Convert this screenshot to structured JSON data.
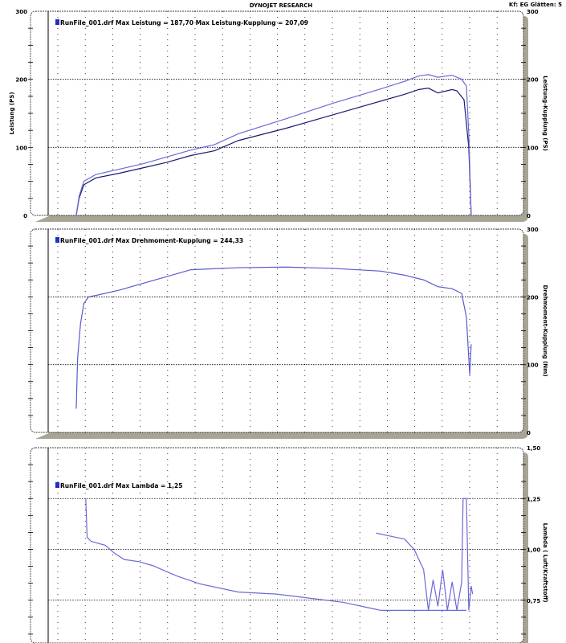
{
  "header": {
    "title": "DYNOJET RESEARCH",
    "settings": "Kf: EG  Glätten: 5"
  },
  "chart_data": [
    {
      "type": "line",
      "ylabel": "Leistung (PS)",
      "y2label": "Leistung-Kupplung (PS)",
      "ylim": [
        0,
        300
      ],
      "yticks": [
        "0",
        "100",
        "200",
        "300"
      ],
      "legend": "RunFile_001.drf Max Leistung = 187,70     Max Leistung-Kupplung = 207,09",
      "series": [
        {
          "name": "Leistung",
          "color": "#1a1a6e",
          "x": [
            5.9,
            6.5,
            7.5,
            10,
            15,
            20,
            25,
            30,
            35,
            40,
            50,
            60,
            70,
            75,
            78,
            80,
            82,
            85,
            86,
            87.5,
            88.5,
            89
          ],
          "y": [
            0,
            25,
            45,
            55,
            62,
            70,
            78,
            88,
            95,
            110,
            128,
            148,
            168,
            178,
            185,
            187,
            180,
            185,
            183,
            170,
            100,
            0
          ]
        },
        {
          "name": "Leistung-Kupplung",
          "color": "#6a6ad8",
          "x": [
            5.9,
            6.5,
            7.5,
            10,
            15,
            20,
            25,
            30,
            35,
            40,
            50,
            60,
            70,
            75,
            78,
            80,
            82,
            85,
            87,
            88,
            88.5,
            89
          ],
          "y": [
            0,
            28,
            50,
            60,
            68,
            76,
            86,
            96,
            104,
            120,
            142,
            165,
            186,
            197,
            205,
            207,
            203,
            206,
            200,
            190,
            120,
            0
          ]
        }
      ]
    },
    {
      "type": "line",
      "y2label": "Drehmoment-Kupplung (Nm)",
      "ylim": [
        0,
        300
      ],
      "yticks": [
        "0",
        "100",
        "200",
        "300"
      ],
      "legend": "RunFile_001.drf Max Drehmoment-Kupplung = 244,33",
      "series": [
        {
          "name": "Drehmoment-Kupplung",
          "color": "#5a5ad0",
          "x": [
            5.9,
            6.2,
            6.8,
            7.5,
            8.5,
            10,
            15,
            20,
            25,
            30,
            40,
            50,
            60,
            70,
            75,
            79,
            82,
            85,
            87,
            88,
            88.7,
            89
          ],
          "y": [
            35,
            110,
            160,
            190,
            200,
            202,
            210,
            220,
            230,
            240,
            243,
            244,
            242,
            238,
            232,
            225,
            215,
            212,
            205,
            170,
            85,
            130
          ]
        }
      ]
    },
    {
      "type": "line",
      "y2label": "Lambda ( Luft/Kraftstoff)",
      "ylim": [
        0.5,
        1.5
      ],
      "yticks": [
        "0,75",
        "1,00",
        "1,25",
        "1,50"
      ],
      "legend": "RunFile_001.drf Max Lambda = 1,25",
      "series": [
        {
          "name": "Lambda",
          "color": "#6a6ad8",
          "x": [
            7.9,
            8.2,
            9,
            12,
            14,
            16,
            19,
            22,
            27,
            32,
            40,
            48,
            55,
            62,
            68,
            70,
            72,
            88
          ],
          "y": [
            1.25,
            1.06,
            1.04,
            1.02,
            0.98,
            0.95,
            0.94,
            0.92,
            0.87,
            0.83,
            0.79,
            0.78,
            0.76,
            0.74,
            0.71,
            0.7,
            0.7,
            0.7
          ]
        },
        {
          "name": "Lambda-2",
          "color": "#6a6ad8",
          "x": [
            69,
            71,
            73,
            75,
            77,
            79,
            80,
            81,
            82,
            83,
            84,
            85,
            86,
            87,
            87.3,
            87.6,
            88,
            88.5,
            89,
            89.3
          ],
          "y": [
            1.08,
            1.07,
            1.06,
            1.05,
            1.0,
            0.9,
            0.7,
            0.85,
            0.72,
            0.9,
            0.7,
            0.84,
            0.7,
            0.84,
            1.25,
            1.25,
            1.25,
            0.7,
            0.82,
            0.78
          ]
        }
      ]
    }
  ]
}
